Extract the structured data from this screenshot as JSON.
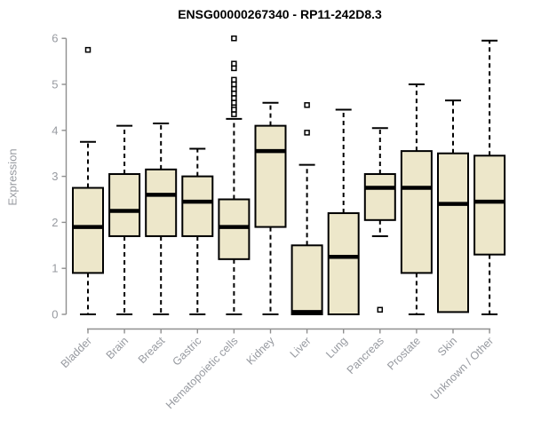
{
  "title": "ENSG00000267340 - RP11-242D8.3",
  "y_axis": {
    "label": "Expression"
  },
  "colors": {
    "box_fill": "#EDE7CA",
    "box_stroke": "#000000",
    "median": "#000000",
    "axis_line": "#8f8f8f",
    "tick_text": "#979aa0",
    "title_text": "#000000",
    "background": "#ffffff"
  },
  "chart_data": {
    "type": "boxplot",
    "title": "ENSG00000267340 - RP11-242D8.3",
    "xlabel": "",
    "ylabel": "Expression",
    "ylim": [
      0,
      6
    ],
    "yticks": [
      0,
      1,
      2,
      3,
      4,
      5,
      6
    ],
    "grid": false,
    "legend": "none",
    "categories": [
      "Bladder",
      "Brain",
      "Breast",
      "Gastric",
      "Hematopoietic cells",
      "Kidney",
      "Liver",
      "Lung",
      "Pancreas",
      "Prostate",
      "Skin",
      "Unknown / Other"
    ],
    "series": [
      {
        "name": "Bladder",
        "low": 0,
        "q1": 0.9,
        "median": 1.9,
        "q3": 2.75,
        "high": 3.75,
        "outliers": [
          5.75
        ]
      },
      {
        "name": "Brain",
        "low": 0,
        "q1": 1.7,
        "median": 2.25,
        "q3": 3.05,
        "high": 4.1,
        "outliers": []
      },
      {
        "name": "Breast",
        "low": 0,
        "q1": 1.7,
        "median": 2.6,
        "q3": 3.15,
        "high": 4.15,
        "outliers": []
      },
      {
        "name": "Gastric",
        "low": 0,
        "q1": 1.7,
        "median": 2.45,
        "q3": 3.0,
        "high": 3.6,
        "outliers": []
      },
      {
        "name": "Hematopoietic cells",
        "low": 0,
        "q1": 1.2,
        "median": 1.9,
        "q3": 2.5,
        "high": 4.25,
        "outliers": [
          6.0,
          5.45,
          5.35,
          5.1,
          5.0,
          4.9,
          4.8,
          4.7,
          4.6,
          4.5,
          4.45,
          4.35
        ]
      },
      {
        "name": "Kidney",
        "low": 0,
        "q1": 1.9,
        "median": 3.55,
        "q3": 4.1,
        "high": 4.6,
        "outliers": []
      },
      {
        "name": "Liver",
        "low": 0,
        "q1": 0,
        "median": 0.05,
        "q3": 1.5,
        "high": 3.25,
        "outliers": [
          3.95,
          4.55
        ]
      },
      {
        "name": "Lung",
        "low": 0,
        "q1": 0,
        "median": 1.25,
        "q3": 2.2,
        "high": 4.45,
        "outliers": []
      },
      {
        "name": "Pancreas",
        "low": 1.7,
        "q1": 2.05,
        "median": 2.75,
        "q3": 3.05,
        "high": 4.05,
        "outliers": [
          0.1
        ]
      },
      {
        "name": "Prostate",
        "low": 0,
        "q1": 0.9,
        "median": 2.75,
        "q3": 3.55,
        "high": 5.0,
        "outliers": []
      },
      {
        "name": "Skin",
        "low": 0.05,
        "q1": 0.05,
        "median": 2.4,
        "q3": 3.5,
        "high": 4.65,
        "outliers": []
      },
      {
        "name": "Unknown / Other",
        "low": 0,
        "q1": 1.3,
        "median": 2.45,
        "q3": 3.45,
        "high": 5.95,
        "outliers": []
      }
    ]
  }
}
